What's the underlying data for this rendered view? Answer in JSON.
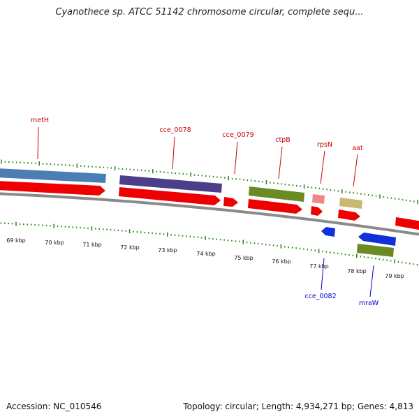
{
  "title": "Cyanothece sp. ATCC 51142 chromosome circular, complete sequ...",
  "footer": {
    "accession": "Accession: NC_010546",
    "summary": "Topology: circular; Length: 4,934,271 bp; Genes: 4,813"
  },
  "colors": {
    "axis": "#8a8a8a",
    "tick": "#2e8b1e",
    "label_forward": "#cc0000",
    "label_reverse": "#0000cc",
    "cds": "#ee0000",
    "blue_gene": "#4a7eb4",
    "purple_gene": "#4b3f8a",
    "green_gene": "#6b8a22",
    "pink_gene": "#f08888",
    "khaki_gene": "#c8b870",
    "reverse_gene": "#1030d8"
  },
  "scale": {
    "unit": "kbp",
    "labels": [
      "69 kbp",
      "70 kbp",
      "71 kbp",
      "72 kbp",
      "73 kbp",
      "74 kbp",
      "75 kbp",
      "76 kbp",
      "77 kbp",
      "78 kbp",
      "79 kbp"
    ]
  },
  "labels_forward": [
    "metH",
    "cce_0078",
    "cce_0079",
    "ctpB",
    "rpsN",
    "aat"
  ],
  "labels_reverse": [
    "cce_0082",
    "mraW"
  ]
}
